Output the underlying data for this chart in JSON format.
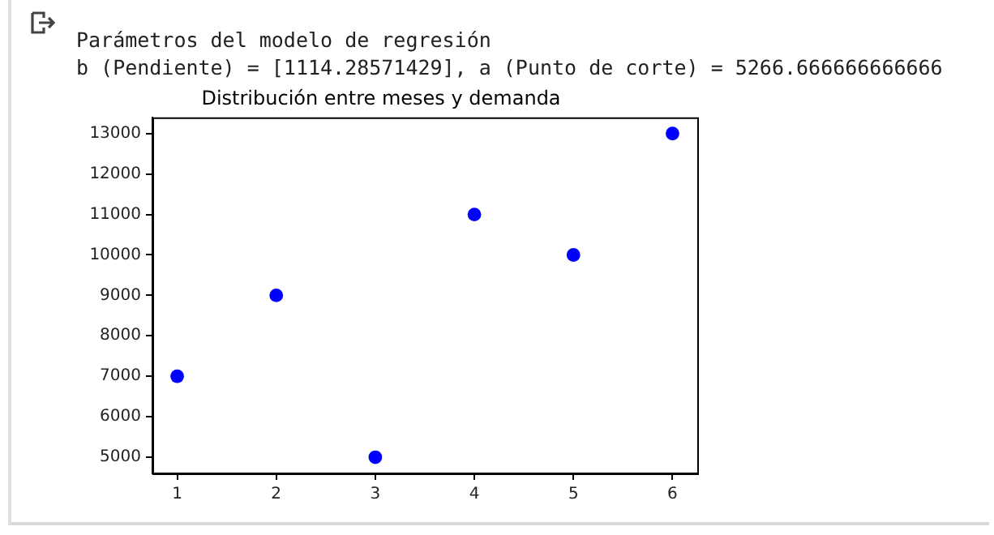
{
  "chart_data": {
    "type": "scatter",
    "title": "Distribución entre meses y demanda",
    "annotations": [
      "Parámetros del modelo de regresión",
      "b (Pendiente) = [1114.28571429], a (Punto de corte) = 5266.666666666666"
    ],
    "x": [
      1,
      2,
      3,
      4,
      5,
      6
    ],
    "series": [
      {
        "color": "#0000ff",
        "values": [
          7000,
          9000,
          5000,
          11000,
          10000,
          13000
        ]
      }
    ],
    "marker": "circle",
    "grid": false,
    "legend": false,
    "xlim": [
      0.75,
      6.25
    ],
    "xticks": [
      1,
      2,
      3,
      4,
      5,
      6
    ],
    "ylim": [
      4600,
      13400
    ],
    "yticks": [
      5000,
      6000,
      7000,
      8000,
      9000,
      10000,
      11000,
      12000,
      13000
    ]
  }
}
